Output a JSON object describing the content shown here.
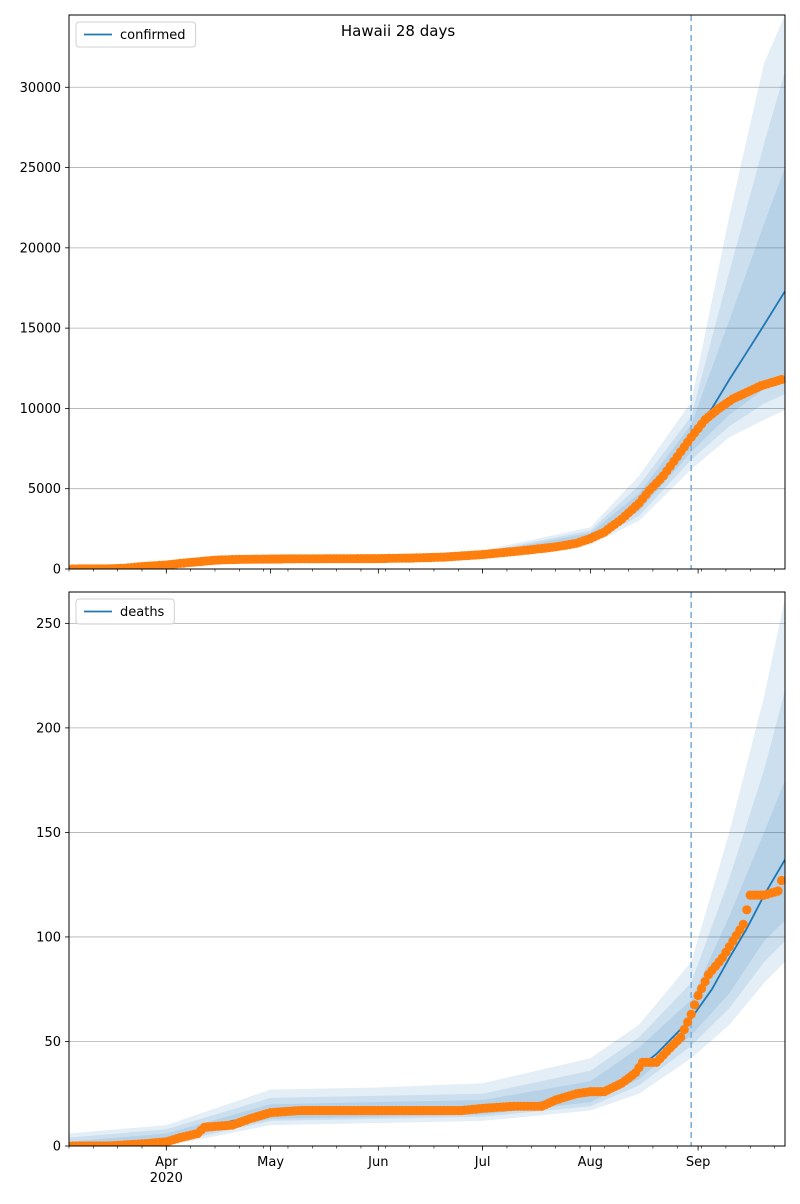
{
  "chart_data": [
    {
      "type": "line",
      "title": "Hawaii 28 days",
      "xlabel": "",
      "ylabel": "",
      "legend": {
        "label": "confirmed",
        "placement": "top-left"
      },
      "x_ticks": [
        {
          "date": "2020-04-01",
          "label": "Apr",
          "sublabel": ""
        },
        {
          "date": "2020-05-01",
          "label": "May",
          "sublabel": ""
        },
        {
          "date": "2020-06-01",
          "label": "Jun",
          "sublabel": ""
        },
        {
          "date": "2020-07-01",
          "label": "Jul",
          "sublabel": ""
        },
        {
          "date": "2020-08-01",
          "label": "Aug",
          "sublabel": ""
        },
        {
          "date": "2020-09-01",
          "label": "Sep",
          "sublabel": ""
        }
      ],
      "xlim": [
        "2020-03-04",
        "2020-09-26"
      ],
      "ylim": [
        0,
        34500
      ],
      "y_ticks": [
        0,
        5000,
        10000,
        15000,
        20000,
        25000,
        30000
      ],
      "grid": "horizontal",
      "forecast_start": "2020-08-30",
      "colors": {
        "model": "#1f77b4",
        "observed": "#ff7f0e",
        "band": "#1f77b4",
        "divider": "#7fb0db"
      },
      "series": [
        {
          "name": "confirmed",
          "kind": "model",
          "points": [
            [
              "2020-03-04",
              0
            ],
            [
              "2020-03-20",
              40
            ],
            [
              "2020-04-01",
              250
            ],
            [
              "2020-04-15",
              550
            ],
            [
              "2020-05-01",
              620
            ],
            [
              "2020-06-01",
              650
            ],
            [
              "2020-06-20",
              720
            ],
            [
              "2020-07-01",
              900
            ],
            [
              "2020-07-15",
              1150
            ],
            [
              "2020-07-25",
              1400
            ],
            [
              "2020-08-01",
              2000
            ],
            [
              "2020-08-08",
              2800
            ],
            [
              "2020-08-15",
              4100
            ],
            [
              "2020-08-22",
              5800
            ],
            [
              "2020-08-30",
              8100
            ],
            [
              "2020-09-05",
              10000
            ],
            [
              "2020-09-10",
              11800
            ],
            [
              "2020-09-15",
              13500
            ],
            [
              "2020-09-20",
              15200
            ],
            [
              "2020-09-26",
              17300
            ]
          ]
        },
        {
          "name": "",
          "kind": "observed",
          "points": [
            [
              "2020-03-05",
              2
            ],
            [
              "2020-03-10",
              5
            ],
            [
              "2020-03-15",
              10
            ],
            [
              "2020-03-20",
              50
            ],
            [
              "2020-03-25",
              150
            ],
            [
              "2020-04-01",
              250
            ],
            [
              "2020-04-05",
              350
            ],
            [
              "2020-04-10",
              450
            ],
            [
              "2020-04-15",
              550
            ],
            [
              "2020-04-20",
              590
            ],
            [
              "2020-04-25",
              605
            ],
            [
              "2020-05-01",
              620
            ],
            [
              "2020-05-10",
              635
            ],
            [
              "2020-05-20",
              640
            ],
            [
              "2020-06-01",
              650
            ],
            [
              "2020-06-10",
              680
            ],
            [
              "2020-06-20",
              740
            ],
            [
              "2020-07-01",
              900
            ],
            [
              "2020-07-08",
              1050
            ],
            [
              "2020-07-15",
              1200
            ],
            [
              "2020-07-22",
              1380
            ],
            [
              "2020-07-28",
              1600
            ],
            [
              "2020-08-01",
              1900
            ],
            [
              "2020-08-05",
              2300
            ],
            [
              "2020-08-10",
              3100
            ],
            [
              "2020-08-15",
              4100
            ],
            [
              "2020-08-18",
              4900
            ],
            [
              "2020-08-22",
              5800
            ],
            [
              "2020-08-26",
              7000
            ],
            [
              "2020-08-30",
              8200
            ],
            [
              "2020-09-03",
              9300
            ],
            [
              "2020-09-07",
              10000
            ],
            [
              "2020-09-11",
              10600
            ],
            [
              "2020-09-15",
              11000
            ],
            [
              "2020-09-19",
              11400
            ],
            [
              "2020-09-25",
              11800
            ]
          ]
        }
      ],
      "bands": [
        {
          "points": [
            [
              "2020-03-04",
              0,
              150
            ],
            [
              "2020-04-01",
              150,
              450
            ],
            [
              "2020-05-01",
              500,
              800
            ],
            [
              "2020-06-01",
              550,
              850
            ],
            [
              "2020-07-01",
              700,
              1150
            ],
            [
              "2020-08-01",
              1500,
              2600
            ],
            [
              "2020-08-15",
              3000,
              5800
            ],
            [
              "2020-08-30",
              6200,
              10400
            ],
            [
              "2020-09-10",
              8200,
              22000
            ],
            [
              "2020-09-20",
              9300,
              31500
            ],
            [
              "2020-09-26",
              9900,
              34500
            ]
          ]
        },
        {
          "points": [
            [
              "2020-03-04",
              0,
              100
            ],
            [
              "2020-04-01",
              180,
              380
            ],
            [
              "2020-05-01",
              540,
              720
            ],
            [
              "2020-06-01",
              580,
              760
            ],
            [
              "2020-07-01",
              760,
              1050
            ],
            [
              "2020-08-01",
              1650,
              2400
            ],
            [
              "2020-08-15",
              3300,
              5200
            ],
            [
              "2020-08-30",
              6800,
              9500
            ],
            [
              "2020-09-10",
              8900,
              18500
            ],
            [
              "2020-09-20",
              10300,
              26500
            ],
            [
              "2020-09-26",
              10900,
              31000
            ]
          ]
        },
        {
          "points": [
            [
              "2020-03-04",
              0,
              60
            ],
            [
              "2020-04-01",
              200,
              320
            ],
            [
              "2020-05-01",
              570,
              680
            ],
            [
              "2020-06-01",
              600,
              710
            ],
            [
              "2020-07-01",
              820,
              980
            ],
            [
              "2020-08-01",
              1780,
              2250
            ],
            [
              "2020-08-15",
              3600,
              4700
            ],
            [
              "2020-08-30",
              7300,
              9000
            ],
            [
              "2020-09-10",
              9600,
              15500
            ],
            [
              "2020-09-20",
              11200,
              21500
            ],
            [
              "2020-09-26",
              11900,
              25000
            ]
          ]
        }
      ]
    },
    {
      "type": "line",
      "title": "",
      "xlabel": "",
      "ylabel": "",
      "legend": {
        "label": "deaths",
        "placement": "top-left"
      },
      "x_ticks": [
        {
          "date": "2020-04-01",
          "label": "Apr",
          "sublabel": "2020"
        },
        {
          "date": "2020-05-01",
          "label": "May",
          "sublabel": ""
        },
        {
          "date": "2020-06-01",
          "label": "Jun",
          "sublabel": ""
        },
        {
          "date": "2020-07-01",
          "label": "Jul",
          "sublabel": ""
        },
        {
          "date": "2020-08-01",
          "label": "Aug",
          "sublabel": ""
        },
        {
          "date": "2020-09-01",
          "label": "Sep",
          "sublabel": ""
        }
      ],
      "xlim": [
        "2020-03-04",
        "2020-09-26"
      ],
      "ylim": [
        0,
        265
      ],
      "y_ticks": [
        0,
        50,
        100,
        150,
        200,
        250
      ],
      "grid": "horizontal",
      "forecast_start": "2020-08-30",
      "colors": {
        "model": "#1f77b4",
        "observed": "#ff7f0e",
        "band": "#1f77b4",
        "divider": "#7fb0db"
      },
      "series": [
        {
          "name": "deaths",
          "kind": "model",
          "points": [
            [
              "2020-03-04",
              0
            ],
            [
              "2020-03-25",
              1
            ],
            [
              "2020-04-01",
              3
            ],
            [
              "2020-04-10",
              7
            ],
            [
              "2020-04-20",
              12
            ],
            [
              "2020-05-01",
              15
            ],
            [
              "2020-05-15",
              16
            ],
            [
              "2020-06-01",
              17
            ],
            [
              "2020-07-01",
              18
            ],
            [
              "2020-07-15",
              20
            ],
            [
              "2020-08-01",
              25
            ],
            [
              "2020-08-10",
              31
            ],
            [
              "2020-08-20",
              44
            ],
            [
              "2020-08-30",
              61
            ],
            [
              "2020-09-05",
              75
            ],
            [
              "2020-09-10",
              90
            ],
            [
              "2020-09-15",
              104
            ],
            [
              "2020-09-20",
              120
            ],
            [
              "2020-09-26",
              137
            ]
          ]
        },
        {
          "name": "",
          "kind": "observed",
          "points": [
            [
              "2020-03-05",
              0
            ],
            [
              "2020-03-15",
              0
            ],
            [
              "2020-03-25",
              1
            ],
            [
              "2020-04-01",
              2
            ],
            [
              "2020-04-05",
              4
            ],
            [
              "2020-04-10",
              6
            ],
            [
              "2020-04-12",
              9
            ],
            [
              "2020-04-20",
              10
            ],
            [
              "2020-04-25",
              13
            ],
            [
              "2020-05-01",
              16
            ],
            [
              "2020-05-10",
              17
            ],
            [
              "2020-06-01",
              17
            ],
            [
              "2020-06-25",
              17
            ],
            [
              "2020-07-01",
              18
            ],
            [
              "2020-07-10",
              19
            ],
            [
              "2020-07-18",
              19
            ],
            [
              "2020-07-22",
              22
            ],
            [
              "2020-07-28",
              25
            ],
            [
              "2020-08-01",
              26
            ],
            [
              "2020-08-05",
              26
            ],
            [
              "2020-08-10",
              30
            ],
            [
              "2020-08-14",
              35
            ],
            [
              "2020-08-16",
              40
            ],
            [
              "2020-08-20",
              40
            ],
            [
              "2020-08-24",
              47
            ],
            [
              "2020-08-27",
              52
            ],
            [
              "2020-08-30",
              63
            ],
            [
              "2020-09-01",
              72
            ],
            [
              "2020-09-04",
              82
            ],
            [
              "2020-09-08",
              90
            ],
            [
              "2020-09-11",
              98
            ],
            [
              "2020-09-14",
              106
            ],
            [
              "2020-09-16",
              120
            ],
            [
              "2020-09-20",
              120
            ],
            [
              "2020-09-24",
              122
            ],
            [
              "2020-09-25",
              127
            ]
          ]
        }
      ],
      "bands": [
        {
          "points": [
            [
              "2020-03-04",
              0,
              6
            ],
            [
              "2020-04-01",
              0,
              10
            ],
            [
              "2020-05-01",
              10,
              27
            ],
            [
              "2020-06-01",
              11,
              28
            ],
            [
              "2020-07-01",
              12,
              30
            ],
            [
              "2020-08-01",
              17,
              42
            ],
            [
              "2020-08-15",
              25,
              58
            ],
            [
              "2020-08-30",
              42,
              88
            ],
            [
              "2020-09-10",
              58,
              150
            ],
            [
              "2020-09-20",
              78,
              215
            ],
            [
              "2020-09-26",
              88,
              262
            ]
          ]
        },
        {
          "points": [
            [
              "2020-03-04",
              0,
              4
            ],
            [
              "2020-04-01",
              1,
              8
            ],
            [
              "2020-05-01",
              12,
              23
            ],
            [
              "2020-06-01",
              13,
              24
            ],
            [
              "2020-07-01",
              14,
              25
            ],
            [
              "2020-08-01",
              19,
              36
            ],
            [
              "2020-08-15",
              29,
              52
            ],
            [
              "2020-08-30",
              48,
              78
            ],
            [
              "2020-09-10",
              66,
              128
            ],
            [
              "2020-09-20",
              88,
              180
            ],
            [
              "2020-09-26",
              98,
              218
            ]
          ]
        },
        {
          "points": [
            [
              "2020-03-04",
              0,
              2
            ],
            [
              "2020-04-01",
              2,
              6
            ],
            [
              "2020-05-01",
              13,
              20
            ],
            [
              "2020-06-01",
              14,
              21
            ],
            [
              "2020-07-01",
              15,
              22
            ],
            [
              "2020-08-01",
              21,
              31
            ],
            [
              "2020-08-15",
              32,
              47
            ],
            [
              "2020-08-30",
              53,
              70
            ],
            [
              "2020-09-10",
              73,
              110
            ],
            [
              "2020-09-20",
              98,
              150
            ],
            [
              "2020-09-26",
              108,
              175
            ]
          ]
        }
      ]
    }
  ]
}
